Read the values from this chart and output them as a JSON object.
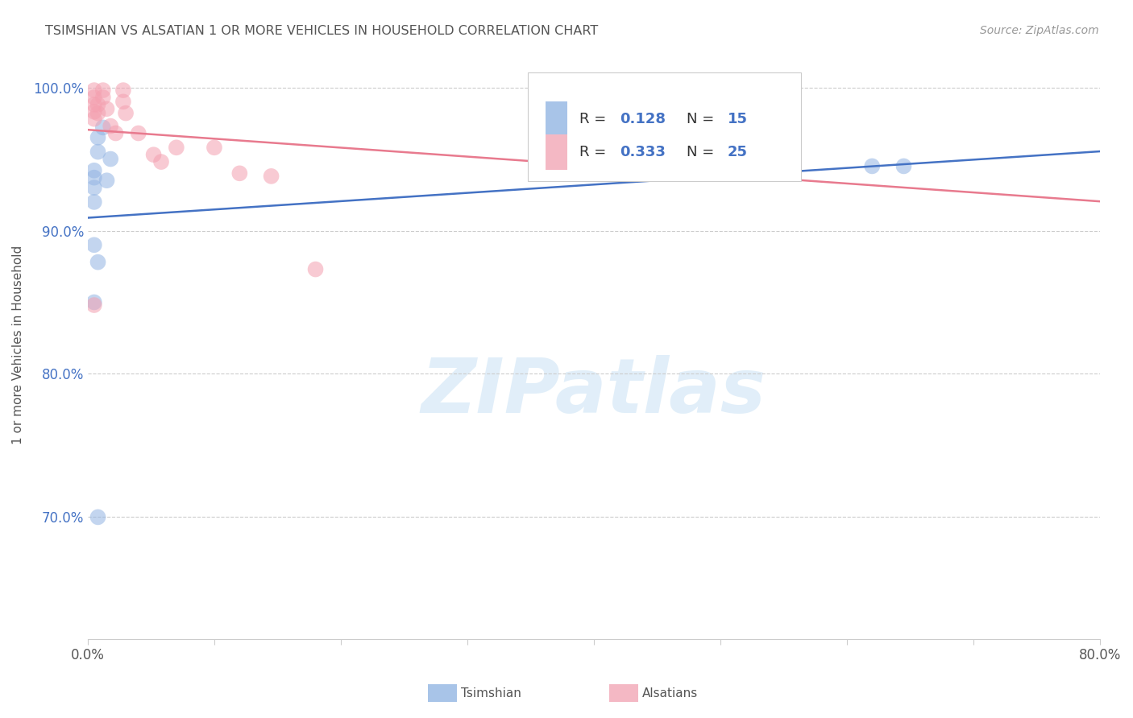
{
  "title": "TSIMSHIAN VS ALSATIAN 1 OR MORE VEHICLES IN HOUSEHOLD CORRELATION CHART",
  "source": "Source: ZipAtlas.com",
  "ylabel": "1 or more Vehicles in Household",
  "watermark": "ZIPatlas",
  "xmin": 0.0,
  "xmax": 0.8,
  "ymin": 0.615,
  "ymax": 1.025,
  "yticks": [
    0.7,
    0.8,
    0.9,
    1.0
  ],
  "ytick_labels": [
    "70.0%",
    "80.0%",
    "90.0%",
    "100.0%"
  ],
  "xticks": [
    0.0,
    0.1,
    0.2,
    0.3,
    0.4,
    0.5,
    0.6,
    0.7,
    0.8
  ],
  "xtick_labels": [
    "0.0%",
    "",
    "",
    "",
    "",
    "",
    "",
    "",
    "80.0%"
  ],
  "blue_scatter_x": [
    0.008,
    0.012,
    0.008,
    0.018,
    0.015,
    0.005,
    0.005,
    0.005,
    0.005,
    0.005,
    0.005,
    0.008,
    0.62,
    0.645,
    0.008
  ],
  "blue_scatter_y": [
    0.965,
    0.972,
    0.955,
    0.95,
    0.935,
    0.942,
    0.937,
    0.93,
    0.92,
    0.89,
    0.85,
    0.878,
    0.945,
    0.945,
    0.7
  ],
  "pink_scatter_x": [
    0.005,
    0.005,
    0.005,
    0.005,
    0.005,
    0.008,
    0.008,
    0.012,
    0.012,
    0.015,
    0.018,
    0.022,
    0.028,
    0.028,
    0.03,
    0.04,
    0.052,
    0.058,
    0.07,
    0.1,
    0.12,
    0.145,
    0.18,
    0.005,
    0.455
  ],
  "pink_scatter_y": [
    0.998,
    0.993,
    0.988,
    0.983,
    0.978,
    0.988,
    0.982,
    0.998,
    0.993,
    0.985,
    0.973,
    0.968,
    0.998,
    0.99,
    0.982,
    0.968,
    0.953,
    0.948,
    0.958,
    0.958,
    0.94,
    0.938,
    0.873,
    0.848,
    0.99
  ],
  "blue_color": "#92b4e3",
  "pink_color": "#f4a0b0",
  "blue_line_color": "#4472c4",
  "pink_line_color": "#e87a8e",
  "blue_legend_color": "#a8c4e8",
  "pink_legend_color": "#f4b8c4",
  "blue_text_color": "#4472c4",
  "title_color": "#555555",
  "source_color": "#999999",
  "grid_color": "#cccccc",
  "scatter_alpha": 0.55,
  "scatter_size": 200
}
